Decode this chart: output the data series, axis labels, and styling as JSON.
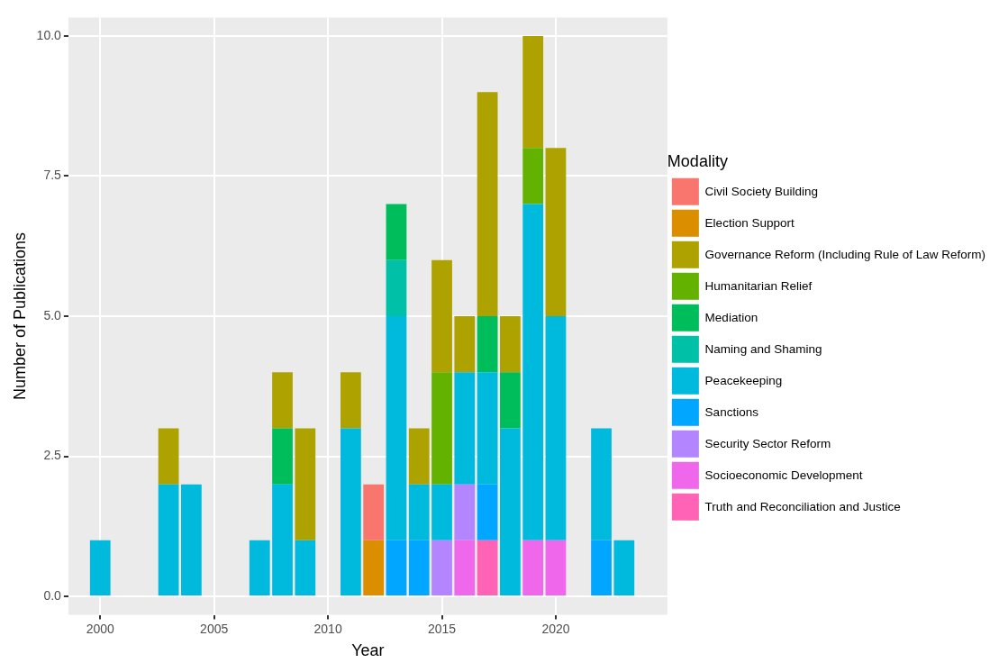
{
  "chart_data": {
    "type": "bar",
    "stacked": true,
    "xlabel": "Year",
    "ylabel": "Number of Publications",
    "legend_title": "Modality",
    "legend": "right",
    "grid": true,
    "x": [
      2000,
      2003,
      2004,
      2007,
      2008,
      2009,
      2011,
      2012,
      2013,
      2014,
      2015,
      2016,
      2017,
      2018,
      2019,
      2020,
      2022,
      2023
    ],
    "xlim": [
      1998.6,
      2024.9
    ],
    "xticks": [
      2000,
      2005,
      2010,
      2015,
      2020
    ],
    "ylim": [
      -0.33,
      10.33
    ],
    "yticks": [
      {
        "value": 0,
        "label": "0.0"
      },
      {
        "value": 2.5,
        "label": "2.5"
      },
      {
        "value": 5,
        "label": "5.0"
      },
      {
        "value": 7.5,
        "label": "7.5"
      },
      {
        "value": 10,
        "label": "10.0"
      }
    ],
    "series": [
      {
        "name": "Truth and Reconciliation and Justice",
        "color": "#ff63b6",
        "values": [
          null,
          null,
          null,
          null,
          null,
          null,
          null,
          null,
          null,
          null,
          null,
          null,
          1,
          null,
          null,
          null,
          null,
          null
        ]
      },
      {
        "name": "Socioeconomic Development",
        "color": "#ef67eb",
        "values": [
          null,
          null,
          null,
          null,
          null,
          null,
          null,
          null,
          null,
          null,
          null,
          1,
          null,
          null,
          1,
          1,
          null,
          null
        ]
      },
      {
        "name": "Security Sector Reform",
        "color": "#b385ff",
        "values": [
          null,
          null,
          null,
          null,
          null,
          null,
          null,
          null,
          null,
          null,
          1,
          1,
          null,
          null,
          null,
          null,
          null,
          null
        ]
      },
      {
        "name": "Sanctions",
        "color": "#00a6ff",
        "values": [
          null,
          null,
          null,
          null,
          null,
          null,
          null,
          null,
          1,
          1,
          null,
          null,
          1,
          null,
          null,
          null,
          1,
          null
        ]
      },
      {
        "name": "Peacekeeping",
        "color": "#00bade",
        "values": [
          1,
          2,
          2,
          1,
          2,
          1,
          3,
          null,
          4,
          1,
          1,
          2,
          2,
          3,
          6,
          4,
          2,
          1
        ]
      },
      {
        "name": "Naming and Shaming",
        "color": "#00c1a7",
        "values": [
          null,
          null,
          null,
          null,
          null,
          null,
          null,
          null,
          1,
          null,
          null,
          null,
          null,
          null,
          null,
          null,
          null,
          null
        ]
      },
      {
        "name": "Mediation",
        "color": "#00bd5c",
        "values": [
          null,
          null,
          null,
          null,
          1,
          null,
          null,
          null,
          1,
          null,
          null,
          null,
          1,
          1,
          null,
          null,
          null,
          null
        ]
      },
      {
        "name": "Humanitarian Relief",
        "color": "#64b200",
        "values": [
          null,
          null,
          null,
          null,
          null,
          null,
          null,
          null,
          null,
          null,
          2,
          null,
          null,
          null,
          1,
          null,
          null,
          null
        ]
      },
      {
        "name": "Governance Reform (Including Rule of Law Reform)",
        "color": "#aea200",
        "values": [
          null,
          1,
          null,
          null,
          1,
          2,
          1,
          null,
          null,
          1,
          2,
          1,
          4,
          1,
          2,
          3,
          null,
          null
        ]
      },
      {
        "name": "Election Support",
        "color": "#db8e00",
        "values": [
          null,
          null,
          null,
          null,
          null,
          null,
          null,
          1,
          null,
          null,
          null,
          null,
          null,
          null,
          null,
          null,
          null,
          null
        ]
      },
      {
        "name": "Civil Society Building",
        "color": "#f8766d",
        "values": [
          null,
          null,
          null,
          null,
          null,
          null,
          null,
          1,
          null,
          null,
          null,
          null,
          null,
          null,
          null,
          null,
          null,
          null
        ]
      }
    ]
  }
}
